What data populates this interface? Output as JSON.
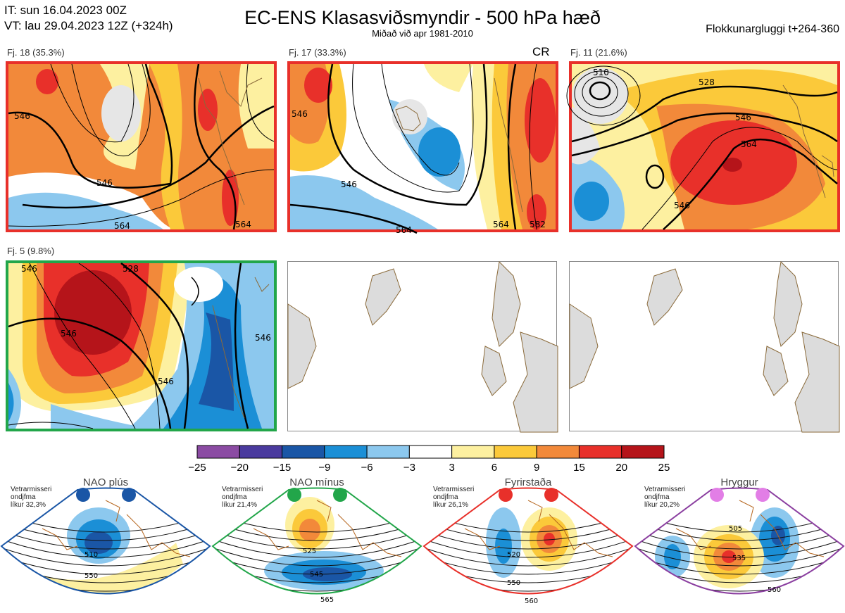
{
  "header": {
    "it_line": "IT: sun 16.04.2023 00Z",
    "vt_line": "VT: lau 29.04.2023 12Z  (+324h)",
    "title": "EC-ENS Klasasviðsmyndir - 500 hPa hæð",
    "subtitle": "Miðað við apr 1981-2010",
    "window": "Flokkunargluggi t+264-360"
  },
  "clusters": [
    {
      "label": "Fj. 18 (35.3%)",
      "border_color": "#e8302a",
      "contours": [
        "546",
        "546",
        "564",
        "564"
      ]
    },
    {
      "label": "Fj. 17 (33.3%)",
      "border_color": "#e8302a",
      "marker": "CR",
      "contours": [
        "546",
        "546",
        "564",
        "564",
        "582"
      ]
    },
    {
      "label": "Fj. 11 (21.6%)",
      "border_color": "#e8302a",
      "contours": [
        "510",
        "528",
        "546",
        "546",
        "564"
      ]
    },
    {
      "label": "Fj. 5 (9.8%)",
      "border_color": "#22a64a",
      "contours": [
        "546",
        "546",
        "546",
        "528",
        "546"
      ]
    }
  ],
  "colorbar": {
    "ticks": [
      "−25",
      "−20",
      "−15",
      "−9",
      "−6",
      "−3",
      "3",
      "6",
      "9",
      "15",
      "20",
      "25"
    ],
    "colors": [
      "#8b4ba3",
      "#4a3a9e",
      "#1a56a6",
      "#1b8fd6",
      "#8cc8ee",
      "#ffffff",
      "#fdf0a0",
      "#fbc93a",
      "#f2893a",
      "#e8302a",
      "#b5141a"
    ]
  },
  "regimes": [
    {
      "title": "NAO plús",
      "info": [
        "Vetrarmisseri",
        "ondjfma",
        "líkur 32,3%"
      ],
      "color": "#1a56a6",
      "contours": [
        "510",
        "550"
      ]
    },
    {
      "title": "NAO mínus",
      "info": [
        "Vetrarmisseri",
        "ondjfma",
        "líkur 21,4%"
      ],
      "color": "#22a64a",
      "contours": [
        "525",
        "545",
        "565"
      ]
    },
    {
      "title": "Fyrirstaða",
      "info": [
        "Vetrarmisseri",
        "ondjfma",
        "líkur 26,1%"
      ],
      "color": "#e8302a",
      "contours": [
        "520",
        "550",
        "560"
      ]
    },
    {
      "title": "Hryggur",
      "info": [
        "Vetrarmisseri",
        "ondjfma",
        "líkur 20,2%"
      ],
      "color": "#8b3fa0",
      "contours": [
        "505",
        "535",
        "560"
      ]
    }
  ]
}
